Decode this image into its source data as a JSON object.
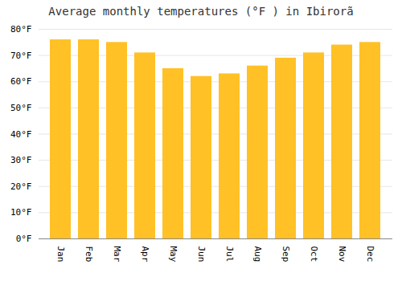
{
  "chart_data": {
    "type": "bar",
    "title": "Average monthly temperatures (°F ) in Ibirorã",
    "categories": [
      "Jan",
      "Feb",
      "Mar",
      "Apr",
      "May",
      "Jun",
      "Jul",
      "Aug",
      "Sep",
      "Oct",
      "Nov",
      "Dec"
    ],
    "values": [
      76,
      76,
      75,
      71,
      65,
      62,
      63,
      66,
      69,
      71,
      74,
      75
    ],
    "color": "#FFC125",
    "ylim": [
      0,
      80
    ],
    "yticks": [
      {
        "value": 0,
        "label": "0°F"
      },
      {
        "value": 10,
        "label": "10°F"
      },
      {
        "value": 20,
        "label": "20°F"
      },
      {
        "value": 30,
        "label": "30°F"
      },
      {
        "value": 40,
        "label": "40°F"
      },
      {
        "value": 50,
        "label": "50°F"
      },
      {
        "value": 60,
        "label": "60°F"
      },
      {
        "value": 70,
        "label": "70°F"
      },
      {
        "value": 80,
        "label": "80°F"
      }
    ],
    "grid": true
  }
}
